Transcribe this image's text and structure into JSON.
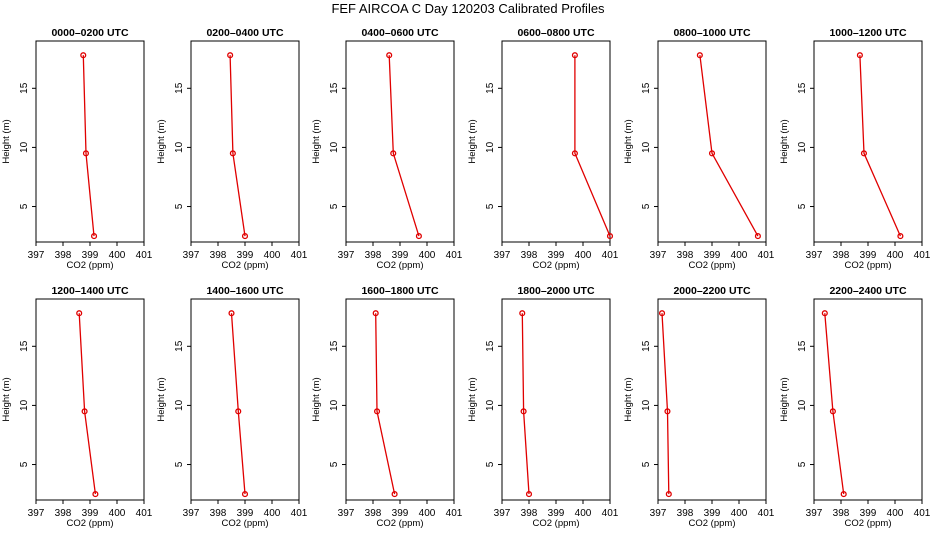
{
  "chart_data": {
    "type": "line",
    "title": "FEF AIRCOA C  Day 120203  Calibrated Profiles",
    "xlabel": "CO2 (ppm)",
    "ylabel": "Height (m)",
    "xlim": [
      397,
      401
    ],
    "ylim": [
      2,
      19
    ],
    "x_ticks": [
      "397",
      "398",
      "399",
      "400",
      "401"
    ],
    "y_ticks": [
      "5",
      "10",
      "15"
    ],
    "heights": [
      2.5,
      9.5,
      17.8
    ],
    "panels": [
      {
        "title": "0000–0200 UTC",
        "co2": [
          399.15,
          398.85,
          398.75
        ]
      },
      {
        "title": "0200–0400 UTC",
        "co2": [
          399.0,
          398.55,
          398.45
        ]
      },
      {
        "title": "0400–0600 UTC",
        "co2": [
          399.7,
          398.75,
          398.6
        ]
      },
      {
        "title": "0600–0800 UTC",
        "co2": [
          401.0,
          399.7,
          399.7
        ]
      },
      {
        "title": "0800–1000 UTC",
        "co2": [
          400.7,
          399.0,
          398.55
        ]
      },
      {
        "title": "1000–1200 UTC",
        "co2": [
          400.2,
          398.85,
          398.7
        ]
      },
      {
        "title": "1200–1400 UTC",
        "co2": [
          399.2,
          398.8,
          398.6
        ]
      },
      {
        "title": "1400–1600 UTC",
        "co2": [
          399.0,
          398.75,
          398.5
        ]
      },
      {
        "title": "1600–1800 UTC",
        "co2": [
          398.8,
          398.15,
          398.1
        ]
      },
      {
        "title": "1800–2000 UTC",
        "co2": [
          398.0,
          397.8,
          397.75
        ]
      },
      {
        "title": "2000–2200 UTC",
        "co2": [
          397.4,
          397.35,
          397.15
        ]
      },
      {
        "title": "2200–2400 UTC",
        "co2": [
          398.1,
          397.7,
          397.4
        ]
      }
    ]
  }
}
